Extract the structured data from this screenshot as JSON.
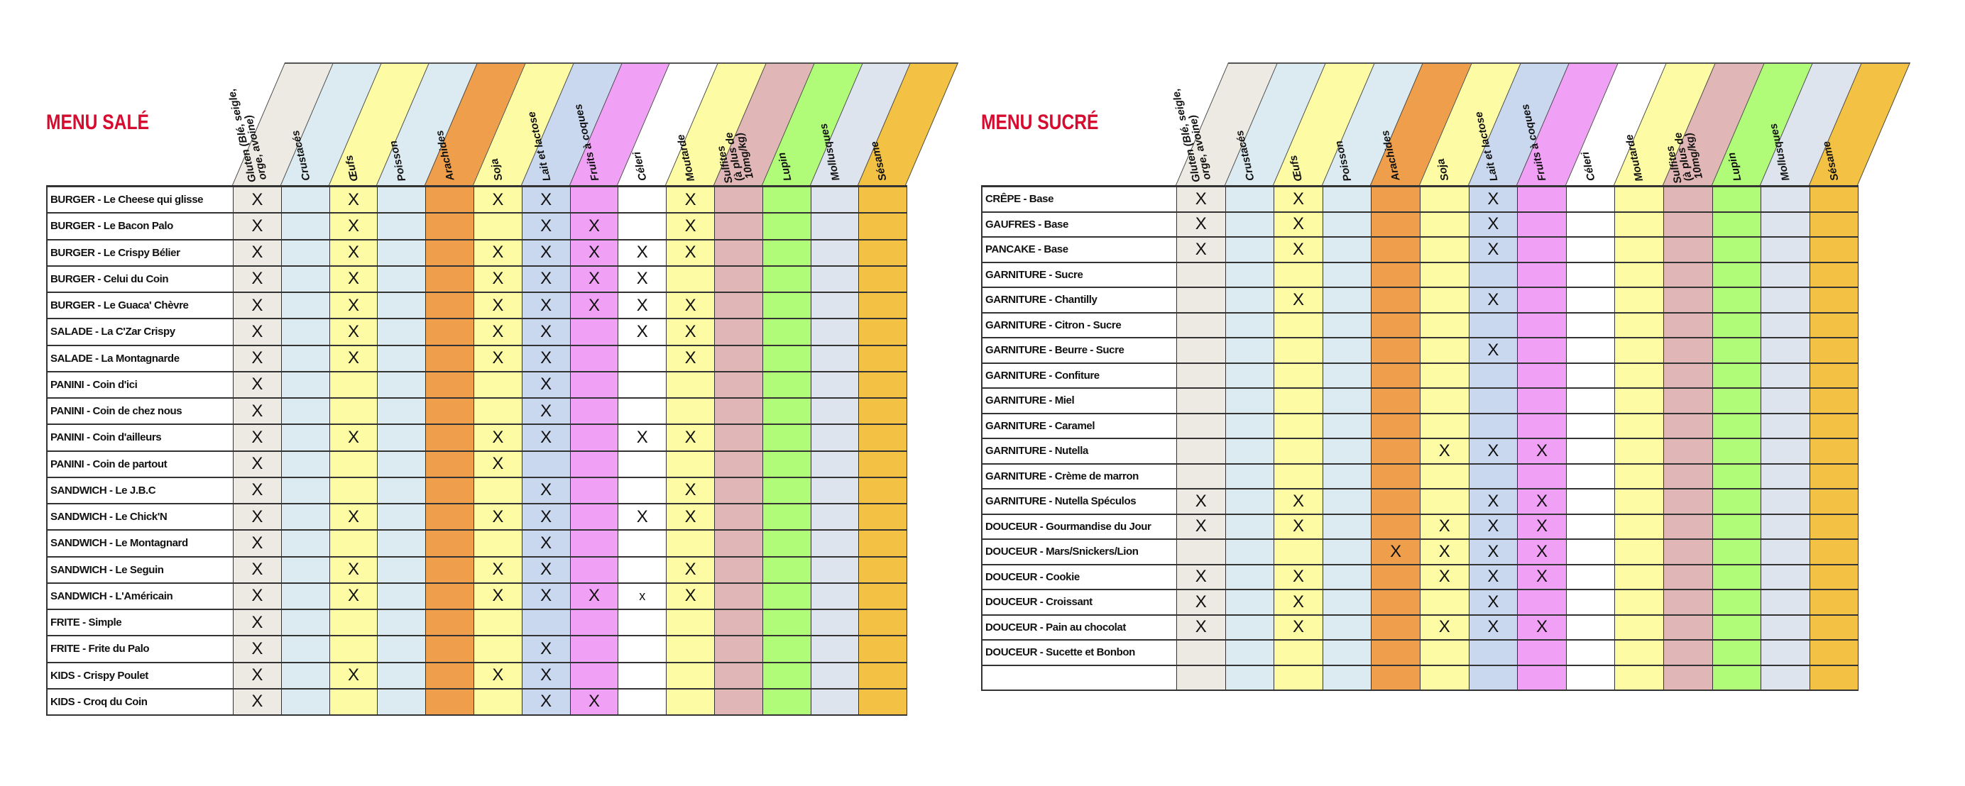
{
  "allergens": [
    {
      "label": "Gluten (Blé, seigle,\norge, avoine)",
      "color": "#edeae3"
    },
    {
      "label": "Crustacés",
      "color": "#dcebf1"
    },
    {
      "label": "Œufs",
      "color": "#fdfca4"
    },
    {
      "label": "Poisson",
      "color": "#dcebf1"
    },
    {
      "label": "Arachides",
      "color": "#ef9f4b"
    },
    {
      "label": "Soja",
      "color": "#fdfca4"
    },
    {
      "label": "Lait et lactose",
      "color": "#c9d8ee"
    },
    {
      "label": "Fruits à coques",
      "color": "#f0a0f5"
    },
    {
      "label": "Céleri",
      "color": "#ffffff"
    },
    {
      "label": "Moutarde",
      "color": "#fdfca4"
    },
    {
      "label": "Sulfites\n(à plus de\n10mg/kg)",
      "color": "#e0b7b6"
    },
    {
      "label": "Lupin",
      "color": "#b0fb78"
    },
    {
      "label": "Mollusques",
      "color": "#dde4ee"
    },
    {
      "label": "Sésame",
      "color": "#f3c244"
    }
  ],
  "menus": [
    {
      "title": "MENU SALÉ",
      "rows": [
        {
          "name": "BURGER - Le Cheese qui glisse",
          "marks": [
            "X",
            "",
            "X",
            "",
            "",
            "X",
            "X",
            "",
            "",
            "X",
            "",
            "",
            "",
            ""
          ]
        },
        {
          "name": "BURGER - Le Bacon Palo",
          "marks": [
            "X",
            "",
            "X",
            "",
            "",
            "",
            "X",
            "X",
            "",
            "X",
            "",
            "",
            "",
            ""
          ]
        },
        {
          "name": "BURGER - Le Crispy Bélier",
          "marks": [
            "X",
            "",
            "X",
            "",
            "",
            "X",
            "X",
            "X",
            "X",
            "X",
            "",
            "",
            "",
            ""
          ]
        },
        {
          "name": "BURGER - Celui du Coin",
          "marks": [
            "X",
            "",
            "X",
            "",
            "",
            "X",
            "X",
            "X",
            "X",
            "",
            "",
            "",
            "",
            ""
          ]
        },
        {
          "name": "BURGER - Le Guaca' Chèvre",
          "marks": [
            "X",
            "",
            "X",
            "",
            "",
            "X",
            "X",
            "X",
            "X",
            "X",
            "",
            "",
            "",
            ""
          ]
        },
        {
          "name": "SALADE - La C'Zar Crispy",
          "marks": [
            "X",
            "",
            "X",
            "",
            "",
            "X",
            "X",
            "",
            "X",
            "X",
            "",
            "",
            "",
            ""
          ]
        },
        {
          "name": "SALADE - La Montagnarde",
          "marks": [
            "X",
            "",
            "X",
            "",
            "",
            "X",
            "X",
            "",
            "",
            "X",
            "",
            "",
            "",
            ""
          ]
        },
        {
          "name": "PANINI - Coin d'ici",
          "marks": [
            "X",
            "",
            "",
            "",
            "",
            "",
            "X",
            "",
            "",
            "",
            "",
            "",
            "",
            ""
          ]
        },
        {
          "name": "PANINI - Coin de chez nous",
          "marks": [
            "X",
            "",
            "",
            "",
            "",
            "",
            "X",
            "",
            "",
            "",
            "",
            "",
            "",
            ""
          ]
        },
        {
          "name": "PANINI - Coin d'ailleurs",
          "marks": [
            "X",
            "",
            "X",
            "",
            "",
            "X",
            "X",
            "",
            "X",
            "X",
            "",
            "",
            "",
            ""
          ]
        },
        {
          "name": "PANINI - Coin de partout",
          "marks": [
            "X",
            "",
            "",
            "",
            "",
            "X",
            "",
            "",
            "",
            "",
            "",
            "",
            "",
            ""
          ]
        },
        {
          "name": "SANDWICH - Le J.B.C",
          "marks": [
            "X",
            "",
            "",
            "",
            "",
            "",
            "X",
            "",
            "",
            "X",
            "",
            "",
            "",
            ""
          ]
        },
        {
          "name": "SANDWICH - Le Chick'N",
          "marks": [
            "X",
            "",
            "X",
            "",
            "",
            "X",
            "X",
            "",
            "X",
            "X",
            "",
            "",
            "",
            ""
          ]
        },
        {
          "name": "SANDWICH - Le Montagnard",
          "marks": [
            "X",
            "",
            "",
            "",
            "",
            "",
            "X",
            "",
            "",
            "",
            "",
            "",
            "",
            ""
          ]
        },
        {
          "name": "SANDWICH - Le Seguin",
          "marks": [
            "X",
            "",
            "X",
            "",
            "",
            "X",
            "X",
            "",
            "",
            "X",
            "",
            "",
            "",
            ""
          ]
        },
        {
          "name": "SANDWICH - L'Américain",
          "marks": [
            "X",
            "",
            "X",
            "",
            "",
            "X",
            "X",
            "X",
            "x",
            "X",
            "",
            "",
            "",
            ""
          ]
        },
        {
          "name": "FRITE - Simple",
          "marks": [
            "X",
            "",
            "",
            "",
            "",
            "",
            "",
            "",
            "",
            "",
            "",
            "",
            "",
            ""
          ]
        },
        {
          "name": "FRITE - Frite du Palo",
          "marks": [
            "X",
            "",
            "",
            "",
            "",
            "",
            "X",
            "",
            "",
            "",
            "",
            "",
            "",
            ""
          ]
        },
        {
          "name": "KIDS - Crispy Poulet",
          "marks": [
            "X",
            "",
            "X",
            "",
            "",
            "X",
            "X",
            "",
            "",
            "",
            "",
            "",
            "",
            ""
          ]
        },
        {
          "name": "KIDS - Croq du Coin",
          "marks": [
            "X",
            "",
            "",
            "",
            "",
            "",
            "X",
            "X",
            "",
            "",
            "",
            "",
            "",
            ""
          ]
        }
      ]
    },
    {
      "title": "MENU SUCRÉ",
      "rows": [
        {
          "name": "CRÊPE - Base",
          "marks": [
            "X",
            "",
            "X",
            "",
            "",
            "",
            "X",
            "",
            "",
            "",
            "",
            "",
            "",
            ""
          ]
        },
        {
          "name": "GAUFRES - Base",
          "marks": [
            "X",
            "",
            "X",
            "",
            "",
            "",
            "X",
            "",
            "",
            "",
            "",
            "",
            "",
            ""
          ]
        },
        {
          "name": "PANCAKE - Base",
          "marks": [
            "X",
            "",
            "X",
            "",
            "",
            "",
            "X",
            "",
            "",
            "",
            "",
            "",
            "",
            ""
          ]
        },
        {
          "name": "GARNITURE - Sucre",
          "marks": [
            "",
            "",
            "",
            "",
            "",
            "",
            "",
            "",
            "",
            "",
            "",
            "",
            "",
            ""
          ]
        },
        {
          "name": "GARNITURE - Chantilly",
          "marks": [
            "",
            "",
            "X",
            "",
            "",
            "",
            "X",
            "",
            "",
            "",
            "",
            "",
            "",
            ""
          ]
        },
        {
          "name": "GARNITURE - Citron - Sucre",
          "marks": [
            "",
            "",
            "",
            "",
            "",
            "",
            "",
            "",
            "",
            "",
            "",
            "",
            "",
            ""
          ]
        },
        {
          "name": "GARNITURE - Beurre - Sucre",
          "marks": [
            "",
            "",
            "",
            "",
            "",
            "",
            "X",
            "",
            "",
            "",
            "",
            "",
            "",
            ""
          ]
        },
        {
          "name": "GARNITURE - Confiture",
          "marks": [
            "",
            "",
            "",
            "",
            "",
            "",
            "",
            "",
            "",
            "",
            "",
            "",
            "",
            ""
          ]
        },
        {
          "name": "GARNITURE - Miel",
          "marks": [
            "",
            "",
            "",
            "",
            "",
            "",
            "",
            "",
            "",
            "",
            "",
            "",
            "",
            ""
          ]
        },
        {
          "name": "GARNITURE - Caramel",
          "marks": [
            "",
            "",
            "",
            "",
            "",
            "",
            "",
            "",
            "",
            "",
            "",
            "",
            "",
            ""
          ]
        },
        {
          "name": "GARNITURE - Nutella",
          "marks": [
            "",
            "",
            "",
            "",
            "",
            "X",
            "X",
            "X",
            "",
            "",
            "",
            "",
            "",
            ""
          ]
        },
        {
          "name": "GARNITURE - Crème de marron",
          "marks": [
            "",
            "",
            "",
            "",
            "",
            "",
            "",
            "",
            "",
            "",
            "",
            "",
            "",
            ""
          ]
        },
        {
          "name": "GARNITURE - Nutella Spéculos",
          "marks": [
            "X",
            "",
            "X",
            "",
            "",
            "",
            "X",
            "X",
            "",
            "",
            "",
            "",
            "",
            ""
          ]
        },
        {
          "name": "DOUCEUR - Gourmandise du Jour",
          "marks": [
            "X",
            "",
            "X",
            "",
            "",
            "X",
            "X",
            "X",
            "",
            "",
            "",
            "",
            "",
            ""
          ]
        },
        {
          "name": "DOUCEUR -  Mars/Snickers/Lion",
          "marks": [
            "",
            "",
            "",
            "",
            "X",
            "X",
            "X",
            "X",
            "",
            "",
            "",
            "",
            "",
            ""
          ]
        },
        {
          "name": "DOUCEUR - Cookie",
          "marks": [
            "X",
            "",
            "X",
            "",
            "",
            "X",
            "X",
            "X",
            "",
            "",
            "",
            "",
            "",
            ""
          ]
        },
        {
          "name": "DOUCEUR - Croissant",
          "marks": [
            "X",
            "",
            "X",
            "",
            "",
            "",
            "X",
            "",
            "",
            "",
            "",
            "",
            "",
            ""
          ]
        },
        {
          "name": "DOUCEUR - Pain au chocolat",
          "marks": [
            "X",
            "",
            "X",
            "",
            "",
            "X",
            "X",
            "X",
            "",
            "",
            "",
            "",
            "",
            ""
          ]
        },
        {
          "name": "DOUCEUR - Sucette et Bonbon",
          "marks": [
            "",
            "",
            "",
            "",
            "",
            "",
            "",
            "",
            "",
            "",
            "",
            "",
            "",
            ""
          ]
        },
        {
          "name": "",
          "marks": [
            "",
            "",
            "",
            "",
            "",
            "",
            "",
            "",
            "",
            "",
            "",
            "",
            "",
            ""
          ]
        }
      ]
    }
  ]
}
